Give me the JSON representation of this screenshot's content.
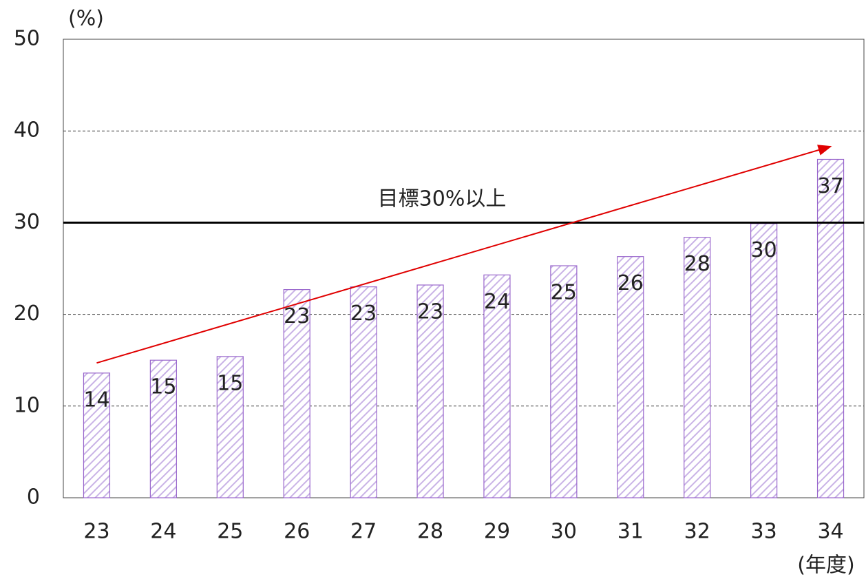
{
  "chart_data": {
    "type": "bar",
    "y_axis_label": "(%)",
    "x_axis_label": "(年度)",
    "annotation": "目標30%以上",
    "target": 30,
    "trend_arrow": {
      "from": 14.7,
      "to": 38.3
    },
    "categories": [
      "23",
      "24",
      "25",
      "26",
      "27",
      "28",
      "29",
      "30",
      "31",
      "32",
      "33",
      "34"
    ],
    "values": [
      13.6,
      15.0,
      15.4,
      22.7,
      23.0,
      23.2,
      24.3,
      25.3,
      26.3,
      28.4,
      29.9,
      36.9
    ],
    "value_labels": [
      "14",
      "15",
      "15",
      "23",
      "23",
      "23",
      "24",
      "25",
      "26",
      "28",
      "30",
      "37"
    ],
    "color": "#9966cc",
    "ylim": [
      0,
      50
    ],
    "yticks": [
      0,
      10,
      20,
      30,
      40,
      50
    ],
    "grid": true
  }
}
